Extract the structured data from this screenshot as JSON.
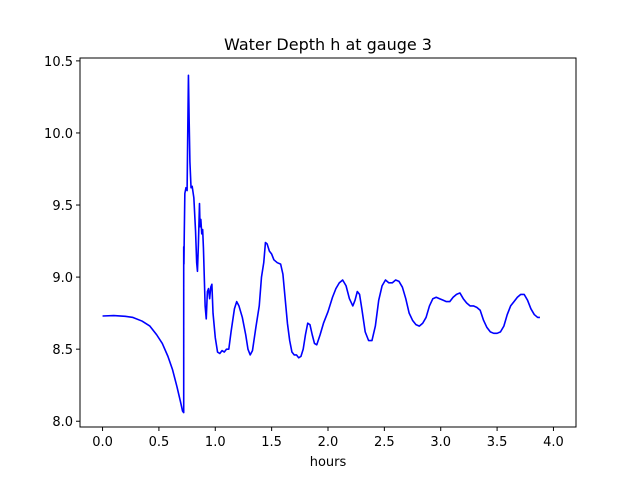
{
  "chart_data": {
    "type": "line",
    "title": "Water Depth h at gauge 3",
    "xlabel": "hours",
    "ylabel": "",
    "xlim": [
      -0.2,
      4.2
    ],
    "ylim": [
      7.96,
      10.52
    ],
    "xticks": [
      0.0,
      0.5,
      1.0,
      1.5,
      2.0,
      2.5,
      3.0,
      3.5,
      4.0
    ],
    "xtick_labels": [
      "0.0",
      "0.5",
      "1.0",
      "1.5",
      "2.0",
      "2.5",
      "3.0",
      "3.5",
      "4.0"
    ],
    "yticks": [
      8.0,
      8.5,
      9.0,
      9.5,
      10.0,
      10.5
    ],
    "ytick_labels": [
      "8.0",
      "8.5",
      "9.0",
      "9.5",
      "10.0",
      "10.5"
    ],
    "grid": false,
    "legend": false,
    "series": [
      {
        "color": "#0000ff",
        "points": [
          [
            0.0,
            8.73
          ],
          [
            0.1,
            8.733
          ],
          [
            0.2,
            8.728
          ],
          [
            0.27,
            8.72
          ],
          [
            0.35,
            8.695
          ],
          [
            0.42,
            8.66
          ],
          [
            0.48,
            8.6
          ],
          [
            0.53,
            8.54
          ],
          [
            0.58,
            8.45
          ],
          [
            0.62,
            8.36
          ],
          [
            0.66,
            8.24
          ],
          [
            0.69,
            8.14
          ],
          [
            0.71,
            8.07
          ],
          [
            0.72,
            8.06
          ],
          [
            0.72,
            9.21
          ],
          [
            0.722,
            9.09
          ],
          [
            0.725,
            9.3
          ],
          [
            0.73,
            9.58
          ],
          [
            0.74,
            9.62
          ],
          [
            0.75,
            9.6
          ],
          [
            0.755,
            9.95
          ],
          [
            0.762,
            10.4
          ],
          [
            0.768,
            10.1
          ],
          [
            0.775,
            9.8
          ],
          [
            0.785,
            9.62
          ],
          [
            0.795,
            9.63
          ],
          [
            0.81,
            9.55
          ],
          [
            0.825,
            9.32
          ],
          [
            0.835,
            9.1
          ],
          [
            0.842,
            9.04
          ],
          [
            0.85,
            9.22
          ],
          [
            0.86,
            9.51
          ],
          [
            0.865,
            9.35
          ],
          [
            0.872,
            9.4
          ],
          [
            0.88,
            9.3
          ],
          [
            0.888,
            9.33
          ],
          [
            0.895,
            9.2
          ],
          [
            0.91,
            8.8
          ],
          [
            0.92,
            8.71
          ],
          [
            0.93,
            8.9
          ],
          [
            0.94,
            8.92
          ],
          [
            0.95,
            8.85
          ],
          [
            0.96,
            8.93
          ],
          [
            0.97,
            8.95
          ],
          [
            0.98,
            8.75
          ],
          [
            1.0,
            8.58
          ],
          [
            1.02,
            8.48
          ],
          [
            1.04,
            8.47
          ],
          [
            1.06,
            8.49
          ],
          [
            1.08,
            8.48
          ],
          [
            1.1,
            8.5
          ],
          [
            1.12,
            8.5
          ],
          [
            1.14,
            8.62
          ],
          [
            1.17,
            8.78
          ],
          [
            1.19,
            8.83
          ],
          [
            1.21,
            8.8
          ],
          [
            1.24,
            8.72
          ],
          [
            1.27,
            8.6
          ],
          [
            1.29,
            8.5
          ],
          [
            1.31,
            8.46
          ],
          [
            1.33,
            8.49
          ],
          [
            1.36,
            8.65
          ],
          [
            1.39,
            8.8
          ],
          [
            1.41,
            9.0
          ],
          [
            1.43,
            9.1
          ],
          [
            1.445,
            9.24
          ],
          [
            1.46,
            9.23
          ],
          [
            1.48,
            9.18
          ],
          [
            1.5,
            9.16
          ],
          [
            1.52,
            9.12
          ],
          [
            1.55,
            9.1
          ],
          [
            1.58,
            9.09
          ],
          [
            1.6,
            9.02
          ],
          [
            1.62,
            8.85
          ],
          [
            1.64,
            8.68
          ],
          [
            1.66,
            8.56
          ],
          [
            1.68,
            8.48
          ],
          [
            1.7,
            8.46
          ],
          [
            1.72,
            8.46
          ],
          [
            1.74,
            8.44
          ],
          [
            1.76,
            8.45
          ],
          [
            1.78,
            8.5
          ],
          [
            1.8,
            8.6
          ],
          [
            1.82,
            8.68
          ],
          [
            1.84,
            8.67
          ],
          [
            1.86,
            8.6
          ],
          [
            1.88,
            8.54
          ],
          [
            1.9,
            8.53
          ],
          [
            1.93,
            8.6
          ],
          [
            1.96,
            8.68
          ],
          [
            2.0,
            8.76
          ],
          [
            2.04,
            8.86
          ],
          [
            2.07,
            8.92
          ],
          [
            2.1,
            8.96
          ],
          [
            2.13,
            8.98
          ],
          [
            2.16,
            8.94
          ],
          [
            2.19,
            8.85
          ],
          [
            2.22,
            8.8
          ],
          [
            2.24,
            8.84
          ],
          [
            2.26,
            8.9
          ],
          [
            2.28,
            8.88
          ],
          [
            2.3,
            8.78
          ],
          [
            2.33,
            8.62
          ],
          [
            2.36,
            8.56
          ],
          [
            2.39,
            8.56
          ],
          [
            2.42,
            8.66
          ],
          [
            2.45,
            8.84
          ],
          [
            2.48,
            8.94
          ],
          [
            2.51,
            8.98
          ],
          [
            2.54,
            8.96
          ],
          [
            2.57,
            8.96
          ],
          [
            2.6,
            8.98
          ],
          [
            2.63,
            8.97
          ],
          [
            2.66,
            8.93
          ],
          [
            2.69,
            8.85
          ],
          [
            2.72,
            8.75
          ],
          [
            2.75,
            8.7
          ],
          [
            2.78,
            8.67
          ],
          [
            2.81,
            8.66
          ],
          [
            2.84,
            8.68
          ],
          [
            2.87,
            8.72
          ],
          [
            2.9,
            8.8
          ],
          [
            2.93,
            8.85
          ],
          [
            2.96,
            8.86
          ],
          [
            2.99,
            8.85
          ],
          [
            3.02,
            8.84
          ],
          [
            3.05,
            8.83
          ],
          [
            3.08,
            8.83
          ],
          [
            3.11,
            8.86
          ],
          [
            3.14,
            8.88
          ],
          [
            3.17,
            8.89
          ],
          [
            3.2,
            8.85
          ],
          [
            3.23,
            8.82
          ],
          [
            3.26,
            8.8
          ],
          [
            3.29,
            8.8
          ],
          [
            3.32,
            8.79
          ],
          [
            3.35,
            8.77
          ],
          [
            3.38,
            8.7
          ],
          [
            3.41,
            8.65
          ],
          [
            3.44,
            8.62
          ],
          [
            3.47,
            8.61
          ],
          [
            3.5,
            8.61
          ],
          [
            3.53,
            8.62
          ],
          [
            3.56,
            8.66
          ],
          [
            3.59,
            8.74
          ],
          [
            3.62,
            8.8
          ],
          [
            3.65,
            8.83
          ],
          [
            3.68,
            8.86
          ],
          [
            3.71,
            8.88
          ],
          [
            3.74,
            8.88
          ],
          [
            3.77,
            8.84
          ],
          [
            3.8,
            8.78
          ],
          [
            3.83,
            8.74
          ],
          [
            3.86,
            8.72
          ],
          [
            3.88,
            8.72
          ]
        ]
      }
    ]
  }
}
